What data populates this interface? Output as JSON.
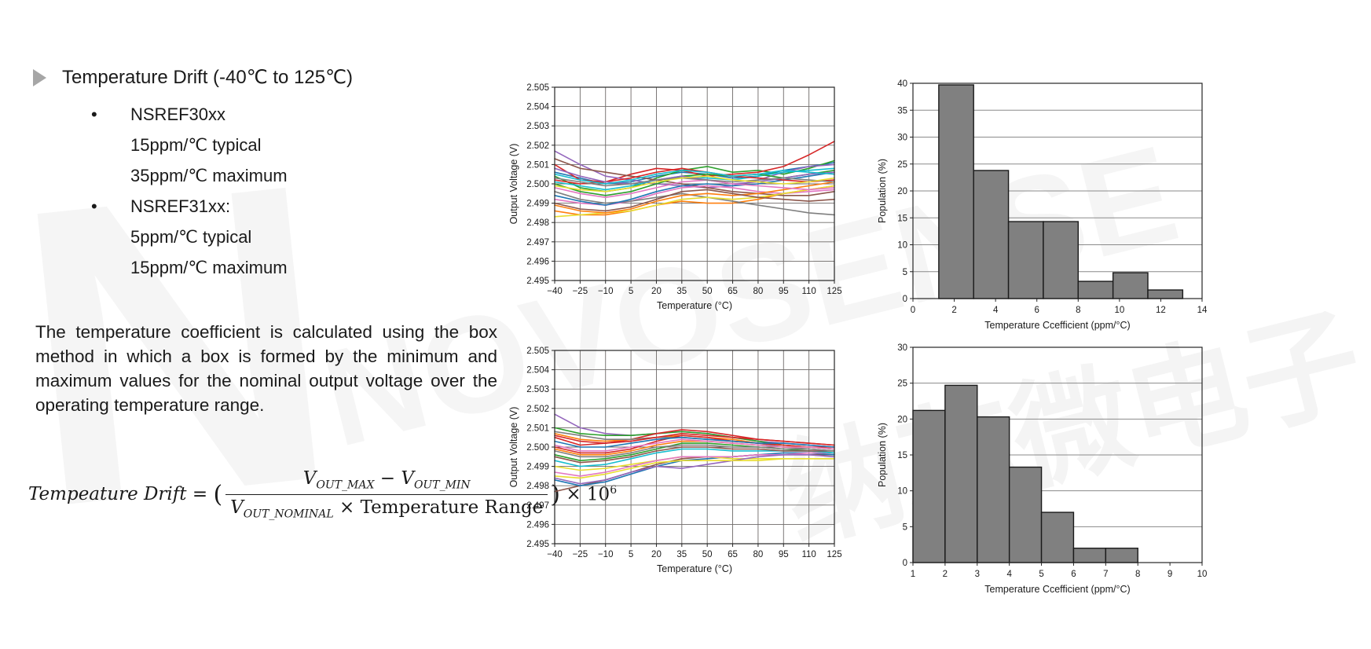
{
  "slide": {
    "title": "Temperature Drift (-40℃ to 125℃)",
    "bullet_char": "•",
    "bullet_groups": [
      {
        "heading": "NSREF30xx",
        "lines": [
          "15ppm/℃ typical",
          "35ppm/℃ maximum"
        ]
      },
      {
        "heading": "NSREF31xx:",
        "lines": [
          "5ppm/℃ typical",
          "15ppm/℃ maximum"
        ]
      }
    ],
    "paragraph": "The temperature coefficient is calculated using the box method in which a box is formed by the minimum and maximum values for the nominal output voltage over the operating temperature range.",
    "formula": {
      "lhs": "Tempeature Drift",
      "equals": "=",
      "open_paren": "(",
      "num_v1": "V",
      "num_v1_sub": "OUT_MAX",
      "num_minus": "−",
      "num_v2": "V",
      "num_v2_sub": "OUT_MIN",
      "den_v": "V",
      "den_v_sub": "OUT_NOMINAL",
      "den_times": "×",
      "den_text": "Temperature Range",
      "close_paren": ")",
      "times": "×",
      "pow_base": "10",
      "pow_exp": "6"
    },
    "watermark": {
      "letter": "N",
      "brand": "NOVOSENSE",
      "cn": "纳芯微电子"
    }
  },
  "chart_data": [
    {
      "id": "line-top",
      "type": "line",
      "title": "",
      "xlabel": "Temperature (°C)",
      "ylabel": "Output Voltage (V)",
      "xlim": [
        -40,
        125
      ],
      "ylim": [
        2.495,
        2.505
      ],
      "xticks": [
        -40,
        -25,
        -10,
        5,
        20,
        35,
        50,
        65,
        80,
        95,
        110,
        125
      ],
      "yticks": [
        2.495,
        2.496,
        2.497,
        2.498,
        2.499,
        2.5,
        2.501,
        2.502,
        2.503,
        2.504,
        2.505
      ],
      "ytick_decimals": 3,
      "grid": true,
      "x": [
        -40,
        -25,
        -10,
        5,
        20,
        35,
        50,
        65,
        80,
        95,
        110,
        125
      ],
      "series": [
        {
          "color": "#1f77b4",
          "values": [
            2.5006,
            2.5003,
            2.5,
            2.5001,
            2.5004,
            2.5006,
            2.5005,
            2.5003,
            2.5004,
            2.5007,
            2.5009,
            2.5011
          ]
        },
        {
          "color": "#ff7f0e",
          "values": [
            2.4986,
            2.4984,
            2.4984,
            2.4986,
            2.4989,
            2.4991,
            2.499,
            2.499,
            2.4992,
            2.4995,
            2.4997,
            2.4999
          ]
        },
        {
          "color": "#2ca02c",
          "values": [
            2.5004,
            2.4998,
            2.4996,
            2.4998,
            2.5003,
            2.5007,
            2.5009,
            2.5006,
            2.5007,
            2.5005,
            2.5008,
            2.5012
          ]
        },
        {
          "color": "#d62728",
          "values": [
            2.501,
            2.5002,
            2.5001,
            2.5005,
            2.5008,
            2.5007,
            2.5004,
            2.5005,
            2.5006,
            2.5009,
            2.5015,
            2.5022
          ]
        },
        {
          "color": "#9467bd",
          "values": [
            2.5017,
            2.501,
            2.5004,
            2.5002,
            2.5,
            2.4999,
            2.4998,
            2.4999,
            2.5002,
            2.5006,
            2.5009,
            2.501
          ]
        },
        {
          "color": "#8c564b",
          "values": [
            2.5013,
            2.5008,
            2.5006,
            2.5004,
            2.5002,
            2.5,
            2.4998,
            2.4996,
            2.4995,
            2.4994,
            2.4994,
            2.4996
          ]
        },
        {
          "color": "#e377c2",
          "values": [
            2.4992,
            2.499,
            2.4989,
            2.4991,
            2.4995,
            2.4998,
            2.4999,
            2.4998,
            2.4996,
            2.4995,
            2.4996,
            2.4997
          ]
        },
        {
          "color": "#7f7f7f",
          "values": [
            2.4996,
            2.4992,
            2.499,
            2.4991,
            2.4993,
            2.4995,
            2.4993,
            2.4991,
            2.4989,
            2.4987,
            2.4985,
            2.4984
          ]
        },
        {
          "color": "#e8dd30",
          "values": [
            2.4983,
            2.4984,
            2.4985,
            2.4986,
            2.4989,
            2.4992,
            2.4993,
            2.4992,
            2.4993,
            2.4995,
            2.4997,
            2.4999
          ]
        },
        {
          "color": "#17becf",
          "values": [
            2.5001,
            2.4999,
            2.4997,
            2.4999,
            2.5002,
            2.5004,
            2.5003,
            2.5002,
            2.5004,
            2.5006,
            2.5007,
            2.5008
          ]
        },
        {
          "color": "#1f77b4",
          "values": [
            2.4994,
            2.4991,
            2.4989,
            2.4992,
            2.4996,
            2.4999,
            2.5,
            2.4999,
            2.5,
            2.5002,
            2.5004,
            2.5006
          ]
        },
        {
          "color": "#ff7f0e",
          "values": [
            2.4989,
            2.4986,
            2.4985,
            2.4987,
            2.4991,
            2.4994,
            2.4995,
            2.4994,
            2.4995,
            2.4997,
            2.4999,
            2.5001
          ]
        },
        {
          "color": "#2ca02c",
          "values": [
            2.5,
            2.4996,
            2.4994,
            2.4996,
            2.5,
            2.5004,
            2.5005,
            2.5004,
            2.5005,
            2.5003,
            2.5005,
            2.5007
          ]
        },
        {
          "color": "#d62728",
          "values": [
            2.5002,
            2.5,
            2.5001,
            2.5003,
            2.5006,
            2.5008,
            2.5006,
            2.5004,
            2.5003,
            2.5002,
            2.5001,
            2.5002
          ]
        },
        {
          "color": "#9467bd",
          "values": [
            2.5008,
            2.5004,
            2.5001,
            2.5,
            2.5002,
            2.5004,
            2.5002,
            2.5,
            2.5001,
            2.5003,
            2.5005,
            2.5006
          ]
        },
        {
          "color": "#8c564b",
          "values": [
            2.499,
            2.4987,
            2.4986,
            2.4988,
            2.4992,
            2.4996,
            2.4997,
            2.4995,
            2.4993,
            2.4992,
            2.4991,
            2.4992
          ]
        },
        {
          "color": "#e377c2",
          "values": [
            2.4998,
            2.4995,
            2.4993,
            2.4995,
            2.4998,
            2.5001,
            2.5002,
            2.5,
            2.4999,
            2.4998,
            2.4997,
            2.4998
          ]
        },
        {
          "color": "#7f7f7f",
          "values": [
            2.5003,
            2.5001,
            2.4999,
            2.5,
            2.5002,
            2.5003,
            2.5002,
            2.5001,
            2.5002,
            2.5003,
            2.5002,
            2.5001
          ]
        },
        {
          "color": "#e8dd30",
          "values": [
            2.4999,
            2.4997,
            2.4996,
            2.4998,
            2.5001,
            2.5003,
            2.5004,
            2.5002,
            2.5001,
            2.5,
            2.5001,
            2.5003
          ]
        },
        {
          "color": "#17becf",
          "values": [
            2.5005,
            2.5002,
            2.5,
            2.5002,
            2.5005,
            2.5007,
            2.5006,
            2.5004,
            2.5005,
            2.5007,
            2.5006,
            2.5005
          ]
        }
      ]
    },
    {
      "id": "hist-top",
      "type": "bar",
      "title": "",
      "xlabel": "Temperature Ccefficient (ppm/°C)",
      "ylabel": "Population (%)",
      "xlim": [
        0,
        14
      ],
      "ylim": [
        0,
        40
      ],
      "xticks": [
        0,
        2,
        4,
        6,
        8,
        10,
        12,
        14
      ],
      "yticks": [
        0,
        5,
        10,
        15,
        20,
        25,
        30,
        35,
        40
      ],
      "ytick_decimals": 0,
      "grid": "horizontal",
      "bar_start": 1.25,
      "bar_width": 1.6875,
      "values": [
        39.7,
        23.8,
        14.3,
        14.3,
        3.2,
        4.8,
        1.6
      ],
      "bar_color": "#808080",
      "bar_edge": "#1a1a1a"
    },
    {
      "id": "line-bottom",
      "type": "line",
      "title": "",
      "xlabel": "Temperature (°C)",
      "ylabel": "Output Voltage (V)",
      "xlim": [
        -40,
        125
      ],
      "ylim": [
        2.495,
        2.505
      ],
      "xticks": [
        -40,
        -25,
        -10,
        5,
        20,
        35,
        50,
        65,
        80,
        95,
        110,
        125
      ],
      "yticks": [
        2.495,
        2.496,
        2.497,
        2.498,
        2.499,
        2.5,
        2.501,
        2.502,
        2.503,
        2.504,
        2.505
      ],
      "ytick_decimals": 3,
      "grid": true,
      "x": [
        -40,
        -25,
        -10,
        5,
        20,
        35,
        50,
        65,
        80,
        95,
        110,
        125
      ],
      "series": [
        {
          "color": "#9467bd",
          "values": [
            2.5017,
            2.501,
            2.5007,
            2.5006,
            2.5007,
            2.5008,
            2.5007,
            2.5005,
            2.5003,
            2.5002,
            2.5001,
            2.5
          ]
        },
        {
          "color": "#2ca02c",
          "values": [
            2.501,
            2.5007,
            2.5006,
            2.5006,
            2.5007,
            2.5008,
            2.5007,
            2.5005,
            2.5003,
            2.5001,
            2.5,
            2.4999
          ]
        },
        {
          "color": "#d62728",
          "values": [
            2.5005,
            2.5001,
            2.5002,
            2.5004,
            2.5007,
            2.5009,
            2.5008,
            2.5006,
            2.5004,
            2.5003,
            2.5002,
            2.5001
          ]
        },
        {
          "color": "#ff7f0e",
          "values": [
            2.5007,
            2.5004,
            2.5003,
            2.5004,
            2.5005,
            2.5006,
            2.5005,
            2.5004,
            2.5002,
            2.5001,
            2.5,
            2.4999
          ]
        },
        {
          "color": "#7f7f7f",
          "values": [
            2.5008,
            2.5006,
            2.5004,
            2.5004,
            2.5005,
            2.5005,
            2.5004,
            2.5003,
            2.5002,
            2.5,
            2.4999,
            2.4998
          ]
        },
        {
          "color": "#8c564b",
          "values": [
            2.4977,
            2.498,
            2.4983,
            2.4987,
            2.4991,
            2.4994,
            2.4995,
            2.4995,
            2.4996,
            2.4996,
            2.4996,
            2.4996
          ]
        },
        {
          "color": "#1f77b4",
          "values": [
            2.4983,
            2.498,
            2.4982,
            2.4986,
            2.499,
            2.4993,
            2.4994,
            2.4995,
            2.4996,
            2.4997,
            2.4997,
            2.4996
          ]
        },
        {
          "color": "#e8dd30",
          "values": [
            2.499,
            2.4988,
            2.4989,
            2.4991,
            2.4993,
            2.4995,
            2.4995,
            2.4994,
            2.4994,
            2.4994,
            2.4994,
            2.4994
          ]
        },
        {
          "color": "#e377c2",
          "values": [
            2.4987,
            2.4985,
            2.4987,
            2.499,
            2.4993,
            2.4995,
            2.4995,
            2.4995,
            2.4996,
            2.4996,
            2.4997,
            2.4997
          ]
        },
        {
          "color": "#9467bd",
          "values": [
            2.4984,
            2.4981,
            2.4983,
            2.4987,
            2.499,
            2.4989,
            2.4991,
            2.4993,
            2.4995,
            2.4996,
            2.4996,
            2.4995
          ]
        },
        {
          "color": "#d62728",
          "values": [
            2.5,
            2.4997,
            2.4997,
            2.4999,
            2.5003,
            2.5006,
            2.5005,
            2.5003,
            2.5002,
            2.5001,
            2.5,
            2.5
          ]
        },
        {
          "color": "#2ca02c",
          "values": [
            2.4996,
            2.4993,
            2.4994,
            2.4996,
            2.4999,
            2.5002,
            2.5002,
            2.5001,
            2.5,
            2.4999,
            2.4998,
            2.4997
          ]
        },
        {
          "color": "#ff7f0e",
          "values": [
            2.4999,
            2.4996,
            2.4996,
            2.4998,
            2.5001,
            2.5003,
            2.5003,
            2.5002,
            2.5001,
            2.5,
            2.5,
            2.4999
          ]
        },
        {
          "color": "#17becf",
          "values": [
            2.4993,
            2.499,
            2.4991,
            2.4994,
            2.4997,
            2.4999,
            2.4999,
            2.4998,
            2.4998,
            2.4998,
            2.4998,
            2.4997
          ]
        },
        {
          "color": "#1f77b4",
          "values": [
            2.5003,
            2.5,
            2.5,
            2.5002,
            2.5004,
            2.5005,
            2.5004,
            2.5003,
            2.5002,
            2.5002,
            2.5001,
            2.5
          ]
        },
        {
          "color": "#8c564b",
          "values": [
            2.4995,
            2.4992,
            2.4993,
            2.4995,
            2.4998,
            2.5,
            2.5,
            2.4999,
            2.4999,
            2.4998,
            2.4998,
            2.4998
          ]
        },
        {
          "color": "#e8dd30",
          "values": [
            2.4985,
            2.4984,
            2.4986,
            2.4989,
            2.4992,
            2.4993,
            2.4993,
            2.4993,
            2.4993,
            2.4994,
            2.4994,
            2.4994
          ]
        },
        {
          "color": "#e377c2",
          "values": [
            2.5001,
            2.4998,
            2.4998,
            2.5,
            2.5002,
            2.5004,
            2.5003,
            2.5002,
            2.5001,
            2.5,
            2.5,
            2.4999
          ]
        },
        {
          "color": "#7f7f7f",
          "values": [
            2.4998,
            2.4995,
            2.4995,
            2.4997,
            2.5,
            2.5001,
            2.5001,
            2.5,
            2.5,
            2.4999,
            2.4999,
            2.4998
          ]
        },
        {
          "color": "#d62728",
          "values": [
            2.5006,
            2.5003,
            2.5002,
            2.5003,
            2.5005,
            2.5007,
            2.5006,
            2.5005,
            2.5004,
            2.5003,
            2.5002,
            2.5001
          ]
        }
      ]
    },
    {
      "id": "hist-bottom",
      "type": "bar",
      "title": "",
      "xlabel": "Temperature Ccefficient (ppm/°C)",
      "ylabel": "Population (%)",
      "xlim": [
        1,
        10
      ],
      "ylim": [
        0,
        30
      ],
      "xticks": [
        1,
        2,
        3,
        4,
        5,
        6,
        7,
        8,
        9,
        10
      ],
      "yticks": [
        0,
        5,
        10,
        15,
        20,
        25,
        30
      ],
      "ytick_decimals": 0,
      "grid": "horizontal",
      "bar_start": 1,
      "bar_width": 1,
      "values": [
        21.2,
        24.7,
        20.3,
        13.3,
        7.0,
        2.0,
        2.0
      ],
      "bar_color": "#808080",
      "bar_edge": "#1a1a1a"
    }
  ]
}
